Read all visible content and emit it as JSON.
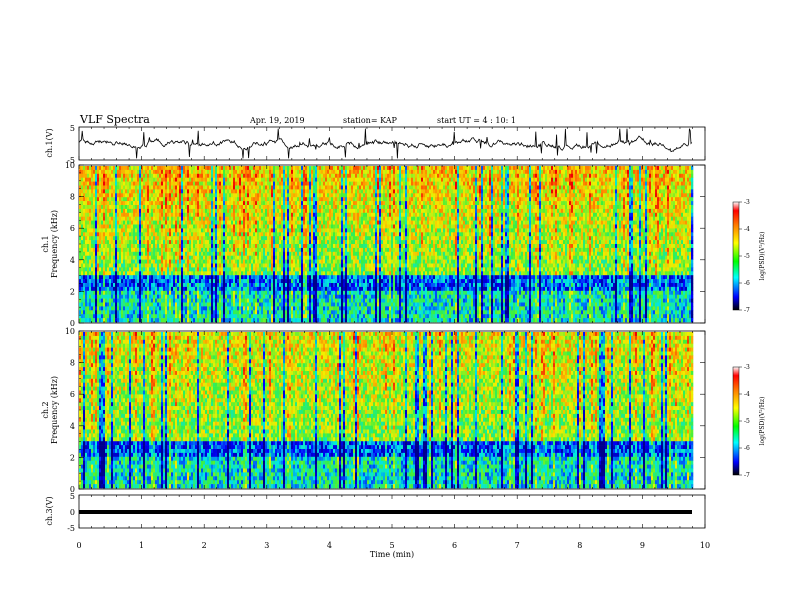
{
  "header": {
    "title": "VLF Spectra",
    "date": "Apr. 19, 2019",
    "station": "station= KAP",
    "start": "start  UT =  4 : 10: 1"
  },
  "colorbar": {
    "label": "log(PSD)(V²/Hz)",
    "ticks": [
      "-3",
      "-4",
      "-5",
      "-6",
      "-7"
    ],
    "stops": [
      "#000080",
      "#0000ff",
      "#00ffff",
      "#00ff00",
      "#ffff00",
      "#ff8000",
      "#ff0000",
      "#ffffff"
    ]
  },
  "chart_data": [
    {
      "type": "line",
      "panel": "ch1",
      "ylabel": "ch.1(V)",
      "ylim": [
        -5,
        5
      ],
      "yticks": [
        "5",
        "-5"
      ],
      "xlim": [
        0,
        10
      ],
      "description_values": "noisy waveform fluctuating roughly between -2 and 2 V",
      "x": [
        0,
        0.5,
        1,
        1.5,
        2,
        2.5,
        3,
        3.5,
        4,
        4.5,
        5,
        5.5,
        6,
        6.5,
        7,
        7.5,
        8,
        8.5,
        9,
        9.5,
        9.8
      ],
      "y": [
        0,
        0.5,
        -1,
        1,
        0,
        -0.5,
        1.5,
        -1,
        0.5,
        0,
        -0.5,
        1,
        -1.5,
        0.5,
        1,
        -1,
        0,
        1.5,
        -0.5,
        0.5,
        1
      ]
    },
    {
      "type": "heatmap",
      "panel": "ch1-spectrogram",
      "ylabel": "ch.1\nFrequency (kHz)",
      "ylim": [
        0,
        10
      ],
      "yticks": [
        "0",
        "2",
        "4",
        "6",
        "8",
        "10"
      ],
      "xlim": [
        0,
        9.8
      ],
      "zlim": [
        -7,
        -3
      ]
    },
    {
      "type": "heatmap",
      "panel": "ch2-spectrogram",
      "ylabel": "ch.2\nFrequency (kHz)",
      "ylim": [
        0,
        10
      ],
      "yticks": [
        "0",
        "2",
        "4",
        "6",
        "8",
        "10"
      ],
      "xlim": [
        0,
        9.8
      ],
      "zlim": [
        -7,
        -3
      ]
    },
    {
      "type": "line",
      "panel": "ch3",
      "ylabel": "ch.3(V)",
      "ylim": [
        -5,
        5
      ],
      "yticks": [
        "5",
        "0",
        "-5"
      ],
      "x": [
        0,
        9.8
      ],
      "y": [
        0,
        0
      ]
    }
  ],
  "xaxis": {
    "label": "Time (min)",
    "ticks": [
      "0",
      "1",
      "2",
      "3",
      "4",
      "5",
      "6",
      "7",
      "8",
      "9",
      "10"
    ]
  }
}
